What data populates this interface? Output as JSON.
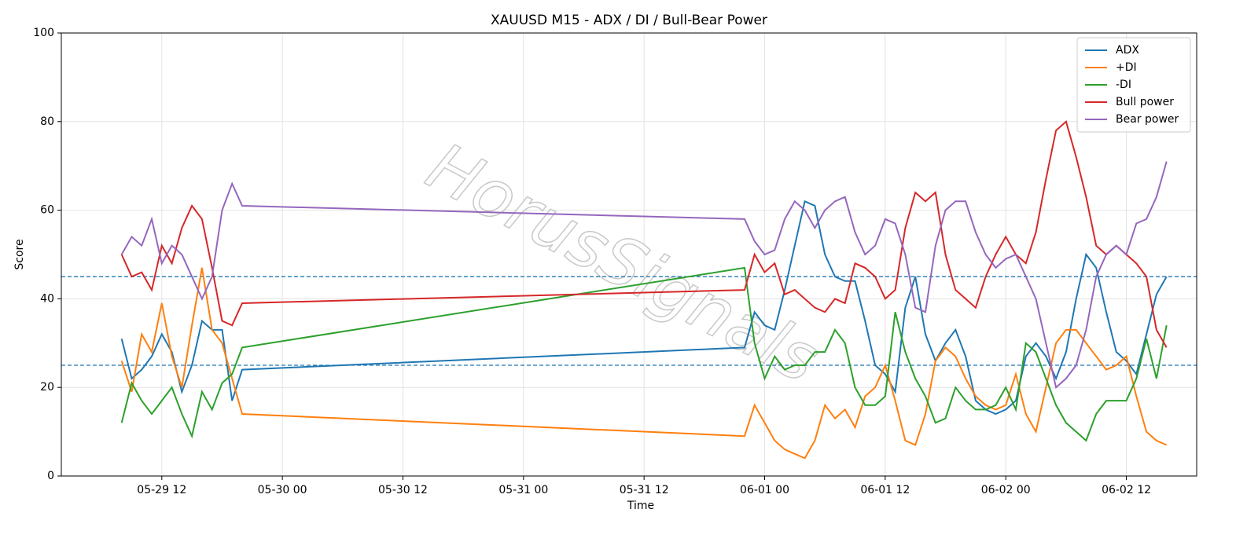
{
  "chart_data": {
    "type": "line",
    "title": "XAUUSD M15 - ADX / DI / Bull-Bear Power",
    "xlabel": "Time",
    "ylabel": "Score",
    "watermark": "HorusSignals",
    "x": [
      "05-29 08",
      "05-29 09",
      "05-29 10",
      "05-29 11",
      "05-29 12",
      "05-29 13",
      "05-29 14",
      "05-29 15",
      "05-29 16",
      "05-29 17",
      "05-29 18",
      "05-29 19",
      "05-29 20",
      "05-31 22",
      "05-31 23",
      "06-01 00",
      "06-01 01",
      "06-01 02",
      "06-01 03",
      "06-01 04",
      "06-01 05",
      "06-01 06",
      "06-01 07",
      "06-01 08",
      "06-01 09",
      "06-01 10",
      "06-01 11",
      "06-01 12",
      "06-01 13",
      "06-01 14",
      "06-01 15",
      "06-01 16",
      "06-01 17",
      "06-01 18",
      "06-01 19",
      "06-01 20",
      "06-01 21",
      "06-01 22",
      "06-01 23",
      "06-02 00",
      "06-02 01",
      "06-02 02",
      "06-02 03",
      "06-02 04",
      "06-02 05",
      "06-02 06",
      "06-02 07",
      "06-02 08",
      "06-02 09",
      "06-02 10",
      "06-02 11",
      "06-02 12",
      "06-02 13",
      "06-02 14",
      "06-02 15",
      "06-02 16"
    ],
    "series": [
      {
        "name": "ADX",
        "color": "#1f77b4",
        "values": [
          31,
          22,
          24,
          27,
          32,
          28,
          19,
          25,
          35,
          33,
          33,
          17,
          24,
          29,
          37,
          34,
          33,
          42,
          52,
          62,
          61,
          50,
          45,
          44,
          44,
          35,
          25,
          23,
          19,
          38,
          45,
          32,
          26,
          30,
          33,
          27,
          17,
          15,
          14,
          15,
          17,
          27,
          30,
          27,
          22,
          28,
          40,
          50,
          47,
          37,
          28,
          26,
          23,
          32,
          41,
          45
        ]
      },
      {
        "name": "+DI",
        "color": "#ff7f0e",
        "values": [
          26,
          19,
          32,
          28,
          39,
          27,
          20,
          34,
          47,
          33,
          30,
          22,
          14,
          9,
          16,
          12,
          8,
          6,
          5,
          4,
          8,
          16,
          13,
          15,
          11,
          18,
          20,
          25,
          17,
          8,
          7,
          14,
          26,
          29,
          27,
          22,
          18,
          16,
          15,
          16,
          23,
          14,
          10,
          20,
          30,
          33,
          33,
          30,
          27,
          24,
          25,
          27,
          18,
          10,
          8,
          7
        ]
      },
      {
        "name": "-DI",
        "color": "#2ca02c",
        "values": [
          12,
          21,
          17,
          14,
          17,
          20,
          14,
          9,
          19,
          15,
          21,
          23,
          29,
          47,
          30,
          22,
          27,
          24,
          25,
          25,
          28,
          28,
          33,
          30,
          20,
          16,
          16,
          18,
          37,
          28,
          22,
          18,
          12,
          13,
          20,
          17,
          15,
          15,
          16,
          20,
          15,
          30,
          28,
          22,
          16,
          12,
          10,
          8,
          14,
          17,
          17,
          17,
          22,
          31,
          22,
          34
        ]
      },
      {
        "name": "Bull power",
        "color": "#d62728",
        "values": [
          50,
          45,
          46,
          42,
          52,
          48,
          56,
          61,
          58,
          47,
          35,
          34,
          39,
          42,
          50,
          46,
          48,
          41,
          42,
          40,
          38,
          37,
          40,
          39,
          48,
          47,
          45,
          40,
          42,
          56,
          64,
          62,
          64,
          50,
          42,
          40,
          38,
          45,
          50,
          54,
          50,
          48,
          55,
          67,
          78,
          80,
          72,
          63,
          52,
          50,
          52,
          50,
          48,
          45,
          33,
          29
        ]
      },
      {
        "name": "Bear power",
        "color": "#9467bd",
        "values": [
          50,
          54,
          52,
          58,
          48,
          52,
          50,
          45,
          40,
          45,
          60,
          66,
          61,
          58,
          53,
          50,
          51,
          58,
          62,
          60,
          56,
          60,
          62,
          63,
          55,
          50,
          52,
          58,
          57,
          50,
          38,
          37,
          52,
          60,
          62,
          62,
          55,
          50,
          47,
          49,
          50,
          45,
          40,
          30,
          20,
          22,
          25,
          33,
          45,
          50,
          52,
          50,
          57,
          58,
          63,
          71
        ]
      }
    ],
    "hlines": [
      45,
      25
    ],
    "hline_color": "#1f77b4",
    "xlim": [
      "05-29 02",
      "06-02 19"
    ],
    "xticks": [
      "05-29 12",
      "05-30 00",
      "05-30 12",
      "05-31 00",
      "05-31 12",
      "06-01 00",
      "06-01 12",
      "06-02 00",
      "06-02 12"
    ],
    "ylim": [
      0,
      100
    ],
    "yticks": [
      0,
      20,
      40,
      60,
      80,
      100
    ],
    "grid": true,
    "legend": "upper right"
  }
}
